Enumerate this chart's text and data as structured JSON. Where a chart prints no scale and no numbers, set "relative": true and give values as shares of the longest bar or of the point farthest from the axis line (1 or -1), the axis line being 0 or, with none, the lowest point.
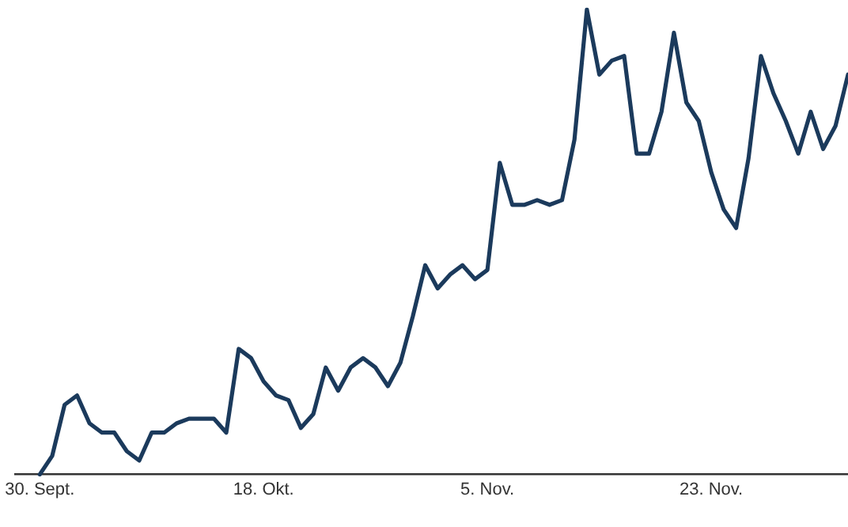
{
  "chart_data": {
    "type": "line",
    "relative": true,
    "line_style": "solid",
    "marker": "none",
    "xlim": [
      "--09-28",
      "--12-04"
    ],
    "xticks": [
      {
        "value": "--09-30",
        "label": "30. Sept."
      },
      {
        "value": "--10-18",
        "label": "18. Okt."
      },
      {
        "value": "--11-05",
        "label": "5. Nov."
      },
      {
        "value": "--11-23",
        "label": "23. Nov."
      }
    ],
    "x": [
      "--09-30",
      "--10-01",
      "--10-02",
      "--10-03",
      "--10-04",
      "--10-05",
      "--10-06",
      "--10-07",
      "--10-08",
      "--10-09",
      "--10-10",
      "--10-11",
      "--10-12",
      "--10-13",
      "--10-14",
      "--10-15",
      "--10-16",
      "--10-17",
      "--10-18",
      "--10-19",
      "--10-20",
      "--10-21",
      "--10-22",
      "--10-23",
      "--10-24",
      "--10-25",
      "--10-26",
      "--10-27",
      "--10-28",
      "--10-29",
      "--10-30",
      "--10-31",
      "--11-01",
      "--11-02",
      "--11-03",
      "--11-04",
      "--11-05",
      "--11-06",
      "--11-07",
      "--11-08",
      "--11-09",
      "--11-10",
      "--11-11",
      "--11-12",
      "--11-13",
      "--11-14",
      "--11-15",
      "--11-16",
      "--11-17",
      "--11-18",
      "--11-19",
      "--11-20",
      "--11-21",
      "--11-22",
      "--11-23",
      "--11-24",
      "--11-25",
      "--11-26",
      "--11-27",
      "--11-28",
      "--11-29",
      "--11-30",
      "--12-01",
      "--12-02",
      "--12-03",
      "--12-04"
    ],
    "series": [
      {
        "color": "#1b3a5c",
        "values": [
          0,
          0.04,
          0.15,
          0.17,
          0.11,
          0.09,
          0.09,
          0.05,
          0.03,
          0.09,
          0.09,
          0.11,
          0.12,
          0.12,
          0.12,
          0.09,
          0.27,
          0.25,
          0.2,
          0.17,
          0.16,
          0.1,
          0.13,
          0.23,
          0.18,
          0.23,
          0.25,
          0.23,
          0.19,
          0.24,
          0.34,
          0.45,
          0.4,
          0.43,
          0.45,
          0.42,
          0.44,
          0.67,
          0.58,
          0.58,
          0.59,
          0.58,
          0.59,
          0.72,
          1,
          0.86,
          0.89,
          0.9,
          0.69,
          0.69,
          0.78,
          0.95,
          0.8,
          0.76,
          0.65,
          0.57,
          0.53,
          0.68,
          0.9,
          0.82,
          0.76,
          0.69,
          0.78,
          0.7,
          0.75,
          0.86
        ]
      }
    ]
  }
}
